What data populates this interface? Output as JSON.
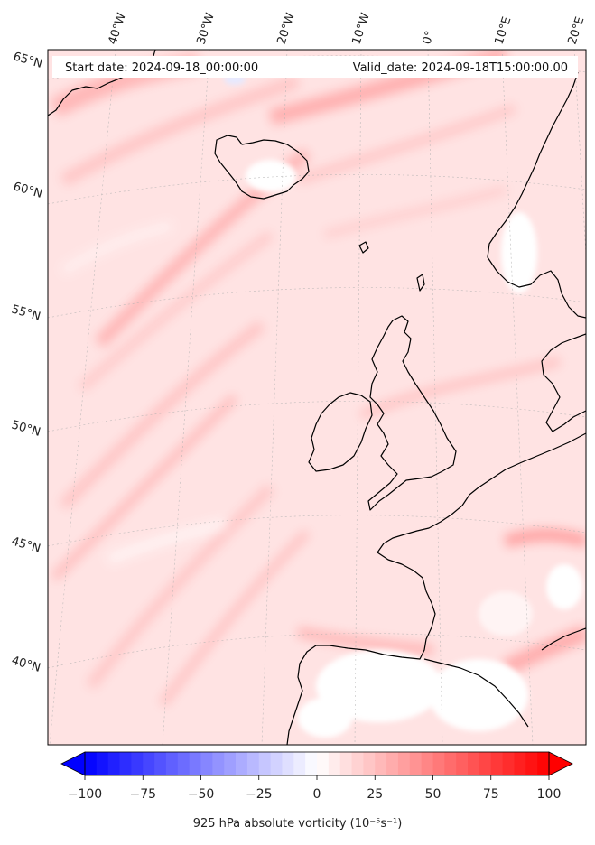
{
  "header": {
    "start_date": "Start date: 2024-09-18_00:00:00",
    "valid_date": "Valid_date: 2024-09-18T15:00:00.00"
  },
  "longitude_labels": [
    "40°W",
    "30°W",
    "20°W",
    "10°W",
    "0°",
    "10°E",
    "20°E"
  ],
  "latitude_labels": [
    "65°N",
    "60°N",
    "55°N",
    "50°N",
    "45°N",
    "40°N"
  ],
  "colorbar": {
    "title": "925 hPa absolute vorticity",
    "units": "(10⁻⁵s⁻¹)",
    "vmin": -100,
    "vmax": 100,
    "ticks": [
      "−100",
      "−75",
      "−50",
      "−25",
      "0",
      "25",
      "50",
      "75",
      "100"
    ],
    "negative_color": "#0000ff",
    "positive_color": "#ff0000",
    "levels": 40,
    "extend": "both"
  },
  "field": {
    "description_colors": {
      "background": "#ffe6e6",
      "strong": "#ff9a9a",
      "weak": "#fff5f5"
    }
  }
}
